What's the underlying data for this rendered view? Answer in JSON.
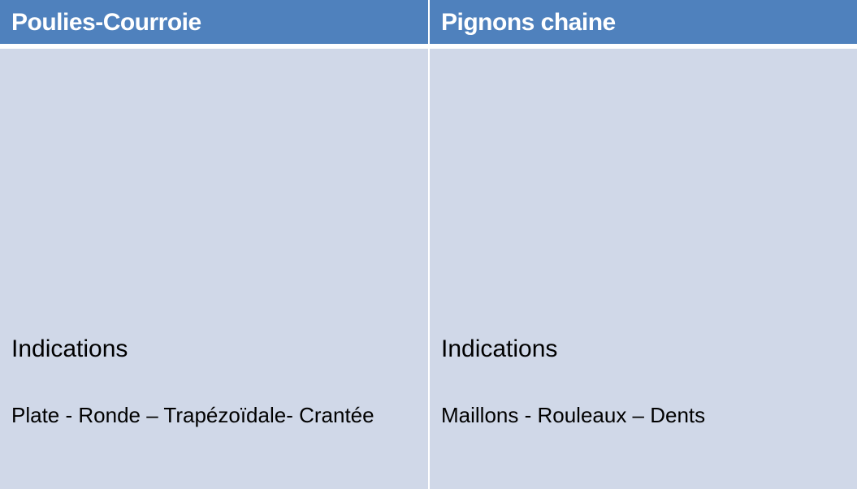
{
  "columns": [
    {
      "header": "Poulies-Courroie",
      "label": "Indications",
      "detail": "Plate - Ronde – Trapézoïdale- Crantée"
    },
    {
      "header": "Pignons chaine",
      "label": "Indications",
      "detail": "Maillons - Rouleaux – Dents"
    }
  ],
  "colors": {
    "header_bg": "#4f81bd",
    "body_bg": "#d0d8e8",
    "header_text": "#ffffff",
    "body_text": "#000000"
  }
}
